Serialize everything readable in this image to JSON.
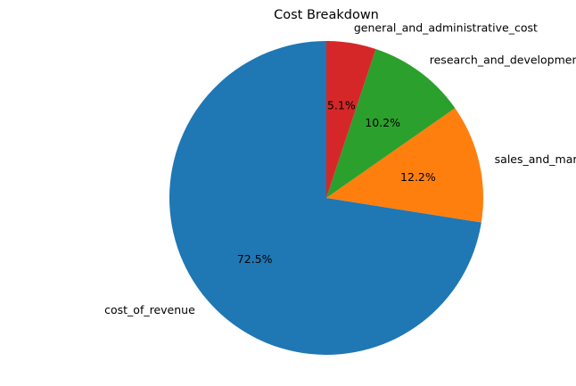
{
  "chart_data": {
    "type": "pie",
    "title": "Cost Breakdown",
    "start_angle_deg": 90,
    "direction": "counterclockwise",
    "slices": [
      {
        "label": "cost_of_revenue",
        "percent": 72.5,
        "percent_label": "72.5%",
        "color": "#1f77b4"
      },
      {
        "label": "sales_and_marketing_cost",
        "percent": 12.2,
        "percent_label": "12.2%",
        "color": "#ff7f0e"
      },
      {
        "label": "research_and_development_cost",
        "percent": 10.2,
        "percent_label": "10.2%",
        "color": "#2ca02c"
      },
      {
        "label": "general_and_administrative_cost",
        "percent": 5.1,
        "percent_label": "5.1%",
        "color": "#d62728"
      }
    ]
  }
}
